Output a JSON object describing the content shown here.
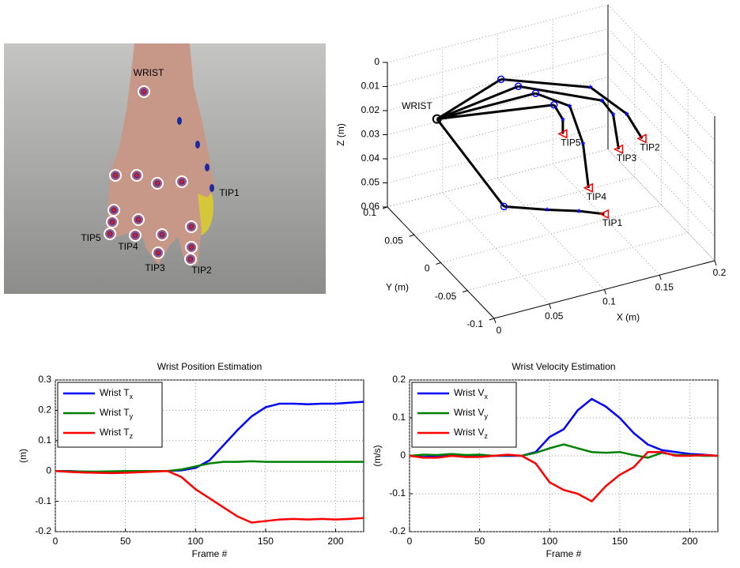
{
  "photo": {
    "labels": [
      "WRIST",
      "TIP1",
      "TIP2",
      "TIP3",
      "TIP4",
      "TIP5"
    ]
  },
  "chart_data": [
    {
      "type": "line3d",
      "xlabel": "X (m)",
      "ylabel": "Y (m)",
      "zlabel": "Z (m)",
      "xlim": [
        0,
        0.2
      ],
      "ylim": [
        -0.1,
        0.1
      ],
      "zlim": [
        0,
        0.06
      ],
      "zreverse": true,
      "xticks": [
        0,
        0.05,
        0.1,
        0.15,
        0.2
      ],
      "yticks": [
        -0.1,
        -0.05,
        0,
        0.05,
        0.1
      ],
      "zticks": [
        0,
        0.01,
        0.02,
        0.03,
        0.04,
        0.05,
        0.06
      ],
      "grid": true,
      "color": "#000000",
      "wrist": {
        "label": "WRIST",
        "x": 0,
        "y": 0.007,
        "z": 0.002
      },
      "series": [
        {
          "name": "TIP1",
          "x": [
            0.038,
            0.077,
            0.106,
            0.129
          ],
          "y": [
            -0.04,
            -0.04,
            -0.04,
            -0.04
          ],
          "z": [
            0.032,
            0.038,
            0.042,
            0.046
          ]
        },
        {
          "name": "TIP2",
          "x": [
            0.074,
            0.155,
            0.188,
            0.197
          ],
          "y": [
            0.04,
            0.04,
            0.04,
            0.03
          ],
          "z": [
            0.002,
            0.015,
            0.03,
            0.039
          ]
        },
        {
          "name": "TIP3",
          "x": [
            0.08,
            0.156,
            0.166,
            0.171
          ],
          "y": [
            0.02,
            0.02,
            0.02,
            0.02
          ],
          "z": [
            0.001,
            0.016,
            0.023,
            0.038
          ]
        },
        {
          "name": "TIP4",
          "x": [
            0.086,
            0.117,
            0.129,
            0.134
          ],
          "y": [
            0,
            0,
            0,
            0
          ],
          "z": [
            0,
            0.009,
            0.026,
            0.045
          ]
        },
        {
          "name": "TIP5",
          "x": [
            0.093,
            0.101,
            0.101
          ],
          "y": [
            -0.02,
            -0.02,
            -0.02
          ],
          "z": [
            0.001,
            0.008,
            0.014
          ]
        }
      ]
    },
    {
      "type": "line",
      "title": "Wrist Position Estimation",
      "xlabel": "Frame #",
      "ylabel": "(m)",
      "xlim": [
        0,
        220
      ],
      "ylim": [
        -0.2,
        0.3
      ],
      "xticks": [
        0,
        50,
        100,
        150,
        200
      ],
      "yticks": [
        -0.2,
        -0.1,
        0,
        0.1,
        0.2,
        0.3
      ],
      "grid": true,
      "x": [
        0,
        10,
        20,
        30,
        40,
        50,
        60,
        70,
        80,
        90,
        100,
        110,
        120,
        130,
        140,
        150,
        160,
        170,
        180,
        190,
        200,
        210,
        220
      ],
      "series": [
        {
          "name": "Wrist T",
          "subscript": "x",
          "color": "#0000ff",
          "values": [
            0,
            0,
            -0.002,
            -0.003,
            -0.002,
            -0.001,
            0,
            0,
            0,
            0.002,
            0.01,
            0.035,
            0.085,
            0.135,
            0.18,
            0.21,
            0.222,
            0.222,
            0.22,
            0.222,
            0.222,
            0.225,
            0.228
          ]
        },
        {
          "name": "Wrist T",
          "subscript": "y",
          "color": "#008000",
          "values": [
            0,
            -0.001,
            -0.002,
            -0.002,
            -0.001,
            0,
            0,
            0,
            0,
            0.005,
            0.015,
            0.025,
            0.03,
            0.03,
            0.032,
            0.03,
            0.03,
            0.03,
            0.03,
            0.03,
            0.03,
            0.03,
            0.03
          ]
        },
        {
          "name": "Wrist T",
          "subscript": "z",
          "color": "#ff0000",
          "values": [
            0,
            -0.003,
            -0.005,
            -0.006,
            -0.007,
            -0.006,
            -0.004,
            -0.002,
            0,
            -0.02,
            -0.06,
            -0.09,
            -0.12,
            -0.15,
            -0.17,
            -0.165,
            -0.16,
            -0.158,
            -0.16,
            -0.158,
            -0.16,
            -0.158,
            -0.155
          ]
        }
      ]
    },
    {
      "type": "line",
      "title": "Wrist Velocity Estimation",
      "xlabel": "Frame #",
      "ylabel": "(m/s)",
      "xlim": [
        0,
        220
      ],
      "ylim": [
        -0.2,
        0.2
      ],
      "xticks": [
        0,
        50,
        100,
        150,
        200
      ],
      "yticks": [
        -0.2,
        -0.1,
        0,
        0.1,
        0.2
      ],
      "grid": true,
      "x": [
        0,
        10,
        20,
        30,
        40,
        50,
        60,
        70,
        80,
        90,
        100,
        110,
        120,
        130,
        140,
        150,
        160,
        170,
        180,
        190,
        200,
        210,
        220
      ],
      "series": [
        {
          "name": "Wrist V",
          "subscript": "x",
          "color": "#0000ff",
          "values": [
            0,
            -0.003,
            0,
            0,
            0.002,
            -0.002,
            0,
            0,
            0,
            0.01,
            0.05,
            0.07,
            0.12,
            0.15,
            0.13,
            0.1,
            0.06,
            0.03,
            0.015,
            0.01,
            0.005,
            0.003,
            0
          ]
        },
        {
          "name": "Wrist V",
          "subscript": "y",
          "color": "#008000",
          "values": [
            0,
            0.003,
            0.002,
            0.005,
            0.002,
            0.003,
            0,
            0.002,
            0,
            0.008,
            0.02,
            0.03,
            0.02,
            0.01,
            0.008,
            0.01,
            0.002,
            -0.005,
            0.008,
            0.002,
            0.002,
            0,
            0
          ]
        },
        {
          "name": "Wrist V",
          "subscript": "z",
          "color": "#ff0000",
          "values": [
            0,
            -0.005,
            -0.005,
            0,
            -0.003,
            -0.003,
            0,
            0.003,
            0,
            -0.02,
            -0.07,
            -0.09,
            -0.1,
            -0.12,
            -0.08,
            -0.05,
            -0.03,
            0.01,
            0.01,
            0,
            0,
            0.002,
            0
          ]
        }
      ]
    }
  ]
}
